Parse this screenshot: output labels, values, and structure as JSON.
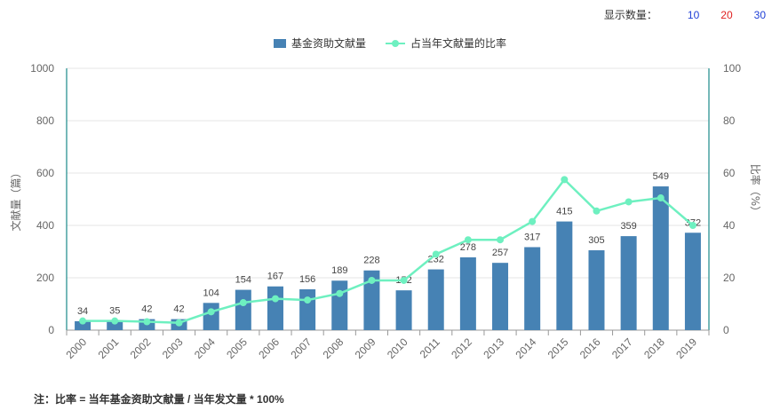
{
  "controls": {
    "label": "显示数量：",
    "options": [
      {
        "text": "10",
        "color": "#1f3fd6"
      },
      {
        "text": "20",
        "color": "#e02020"
      },
      {
        "text": "30",
        "color": "#1f3fd6"
      }
    ]
  },
  "legend": {
    "bar": "基金资助文献量",
    "line": "占当年文献量的比率"
  },
  "note": "注：比率 = 当年基金资助文献量 / 当年发文量 * 100%",
  "colors": {
    "bar": "#4682b4",
    "line": "#6ef0c0",
    "axis": "#1a8a8a",
    "grid": "#e6e6e6"
  },
  "chart_data": {
    "type": "bar+line",
    "categories": [
      "2000",
      "2001",
      "2002",
      "2003",
      "2004",
      "2005",
      "2006",
      "2007",
      "2008",
      "2009",
      "2010",
      "2011",
      "2012",
      "2013",
      "2014",
      "2015",
      "2016",
      "2017",
      "2018",
      "2019"
    ],
    "series": [
      {
        "name": "基金资助文献量",
        "type": "bar",
        "axis": "left",
        "values": [
          34,
          35,
          42,
          42,
          104,
          154,
          167,
          156,
          189,
          228,
          152,
          232,
          278,
          257,
          317,
          415,
          305,
          359,
          549,
          372
        ]
      },
      {
        "name": "占当年文献量的比率",
        "type": "line",
        "axis": "right",
        "values": [
          3.5,
          3.5,
          3.2,
          2.8,
          7,
          10.5,
          12,
          11.5,
          14,
          19,
          19,
          29,
          34.5,
          34.5,
          41.5,
          57.5,
          45.5,
          49,
          50.5,
          40
        ]
      }
    ],
    "ylabel_left": "文献量（篇）",
    "ylabel_right": "比率（%）",
    "ylim_left": [
      0,
      1000
    ],
    "ylim_right": [
      0,
      100
    ],
    "yticks_left": [
      "0",
      "200",
      "400",
      "600",
      "800",
      "1000"
    ],
    "yticks_right": [
      "0",
      "20",
      "40",
      "60",
      "80",
      "100"
    ],
    "grid": true,
    "legend_position": "top-center"
  }
}
